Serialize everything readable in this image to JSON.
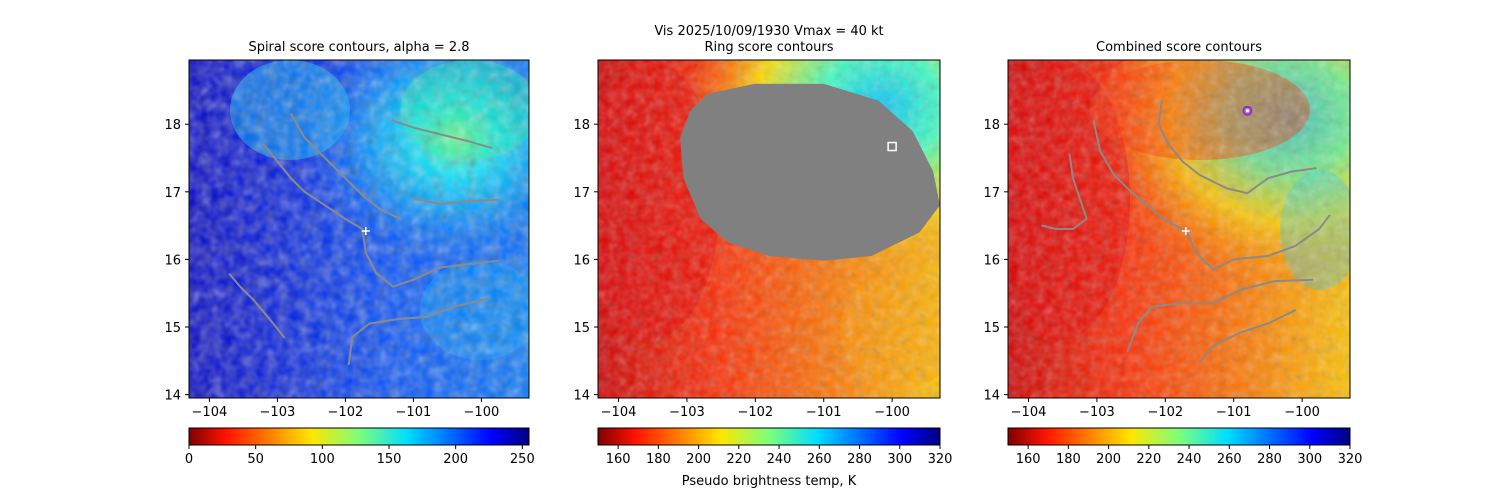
{
  "figure": {
    "suptitle_line1": "Vis  2025/10/09/1930    Vmax = 40 kt"
  },
  "colors": {
    "contour": "#8a8a8a",
    "mask": "#808080",
    "center_marker": "#ffffff",
    "combined_marker": "#8a2be2"
  },
  "chart_data": [
    {
      "type": "heatmap",
      "title": "Spiral score contours, alpha =  2.8",
      "colormap": "jet",
      "scene": "vis",
      "xlim": [
        -104.3,
        -99.3
      ],
      "ylim": [
        13.95,
        18.95
      ],
      "xticks": [
        -104,
        -103,
        -102,
        -101,
        -100
      ],
      "yticks": [
        14,
        15,
        16,
        17,
        18
      ],
      "colorbar": {
        "min": 0,
        "max": 255,
        "ticks": [
          0,
          50,
          100,
          150,
          200,
          250
        ],
        "reversed": true,
        "label": ""
      },
      "center": [
        -101.7,
        16.42
      ],
      "contours": [
        [
          [
            -103.7,
            15.78
          ],
          [
            -103.55,
            15.6
          ],
          [
            -103.35,
            15.4
          ],
          [
            -103.1,
            15.1
          ],
          [
            -102.9,
            14.85
          ]
        ],
        [
          [
            -103.2,
            17.7
          ],
          [
            -103.0,
            17.45
          ],
          [
            -102.8,
            17.2
          ],
          [
            -102.6,
            17.0
          ],
          [
            -102.3,
            16.8
          ],
          [
            -102.0,
            16.6
          ],
          [
            -101.75,
            16.45
          ]
        ],
        [
          [
            -102.8,
            18.15
          ],
          [
            -102.6,
            17.8
          ],
          [
            -102.3,
            17.5
          ],
          [
            -102.0,
            17.2
          ],
          [
            -101.75,
            16.95
          ],
          [
            -101.5,
            16.75
          ],
          [
            -101.2,
            16.6
          ]
        ],
        [
          [
            -101.75,
            16.45
          ],
          [
            -101.7,
            16.1
          ],
          [
            -101.55,
            15.8
          ],
          [
            -101.3,
            15.6
          ],
          [
            -101.0,
            15.7
          ],
          [
            -100.6,
            15.88
          ],
          [
            -100.2,
            15.93
          ],
          [
            -99.75,
            15.98
          ]
        ],
        [
          [
            -101.95,
            14.45
          ],
          [
            -101.9,
            14.85
          ],
          [
            -101.65,
            15.05
          ],
          [
            -101.2,
            15.12
          ],
          [
            -100.8,
            15.15
          ],
          [
            -100.4,
            15.3
          ],
          [
            -99.9,
            15.42
          ]
        ],
        [
          [
            -101.3,
            18.05
          ],
          [
            -101.0,
            17.95
          ],
          [
            -100.6,
            17.85
          ],
          [
            -100.2,
            17.75
          ],
          [
            -99.85,
            17.65
          ]
        ],
        [
          [
            -101.0,
            16.9
          ],
          [
            -100.6,
            16.82
          ],
          [
            -100.2,
            16.86
          ],
          [
            -99.75,
            16.88
          ]
        ]
      ]
    },
    {
      "type": "heatmap",
      "title": "Ring score contours",
      "colormap": "jet_r",
      "scene": "ir",
      "xlim": [
        -104.3,
        -99.3
      ],
      "ylim": [
        13.95,
        18.95
      ],
      "xticks": [
        -104,
        -103,
        -102,
        -101,
        -100
      ],
      "yticks": [
        14,
        15,
        16,
        17,
        18
      ],
      "colorbar": {
        "min": 150,
        "max": 320,
        "ticks": [
          160,
          180,
          200,
          220,
          240,
          260,
          280,
          300,
          320
        ],
        "reversed": false,
        "label": "Pseudo brightness temp, K"
      },
      "masked_region": {
        "points": [
          [
            -102.7,
            18.45
          ],
          [
            -102.0,
            18.6
          ],
          [
            -101.0,
            18.6
          ],
          [
            -100.2,
            18.35
          ],
          [
            -99.7,
            17.9
          ],
          [
            -99.4,
            17.3
          ],
          [
            -99.3,
            16.8
          ],
          [
            -99.6,
            16.4
          ],
          [
            -100.3,
            16.05
          ],
          [
            -101.0,
            15.98
          ],
          [
            -101.8,
            16.05
          ],
          [
            -102.4,
            16.25
          ],
          [
            -102.8,
            16.6
          ],
          [
            -103.05,
            17.2
          ],
          [
            -103.1,
            17.8
          ],
          [
            -102.95,
            18.2
          ]
        ]
      },
      "square_marker": [
        -100.0,
        17.67
      ]
    },
    {
      "type": "heatmap",
      "title": "Combined score contours",
      "colormap": "jet_r",
      "scene": "ir",
      "xlim": [
        -104.3,
        -99.3
      ],
      "ylim": [
        13.95,
        18.95
      ],
      "xticks": [
        -104,
        -103,
        -102,
        -101,
        -100
      ],
      "yticks": [
        14,
        15,
        16,
        17,
        18
      ],
      "colorbar": {
        "min": 150,
        "max": 320,
        "ticks": [
          160,
          180,
          200,
          220,
          240,
          260,
          280,
          300,
          320
        ],
        "reversed": false,
        "label": ""
      },
      "center": [
        -101.7,
        16.42
      ],
      "circle_marker": [
        -100.8,
        18.2
      ],
      "contours": [
        [
          [
            -103.4,
            17.55
          ],
          [
            -103.35,
            17.2
          ],
          [
            -103.25,
            16.9
          ],
          [
            -103.15,
            16.6
          ],
          [
            -103.35,
            16.45
          ],
          [
            -103.6,
            16.45
          ],
          [
            -103.8,
            16.5
          ]
        ],
        [
          [
            -103.05,
            18.05
          ],
          [
            -102.95,
            17.6
          ],
          [
            -102.75,
            17.25
          ],
          [
            -102.5,
            17.0
          ],
          [
            -102.2,
            16.75
          ],
          [
            -102.0,
            16.58
          ],
          [
            -101.7,
            16.42
          ]
        ],
        [
          [
            -102.05,
            18.35
          ],
          [
            -102.1,
            18.0
          ],
          [
            -101.95,
            17.7
          ],
          [
            -101.75,
            17.45
          ],
          [
            -101.5,
            17.25
          ],
          [
            -101.1,
            17.05
          ],
          [
            -100.8,
            16.98
          ],
          [
            -100.5,
            17.2
          ],
          [
            -100.15,
            17.3
          ],
          [
            -99.8,
            17.35
          ]
        ],
        [
          [
            -101.7,
            16.42
          ],
          [
            -101.55,
            16.1
          ],
          [
            -101.3,
            15.85
          ],
          [
            -101.0,
            16.0
          ],
          [
            -100.5,
            16.05
          ],
          [
            -100.1,
            16.2
          ],
          [
            -99.75,
            16.45
          ],
          [
            -99.6,
            16.65
          ]
        ],
        [
          [
            -102.55,
            14.65
          ],
          [
            -102.4,
            15.05
          ],
          [
            -102.2,
            15.3
          ],
          [
            -101.8,
            15.35
          ],
          [
            -101.3,
            15.35
          ],
          [
            -100.9,
            15.55
          ],
          [
            -100.4,
            15.68
          ],
          [
            -99.85,
            15.7
          ]
        ],
        [
          [
            -101.5,
            14.48
          ],
          [
            -101.3,
            14.72
          ],
          [
            -100.9,
            14.92
          ],
          [
            -100.5,
            15.05
          ],
          [
            -100.1,
            15.25
          ]
        ]
      ]
    }
  ]
}
